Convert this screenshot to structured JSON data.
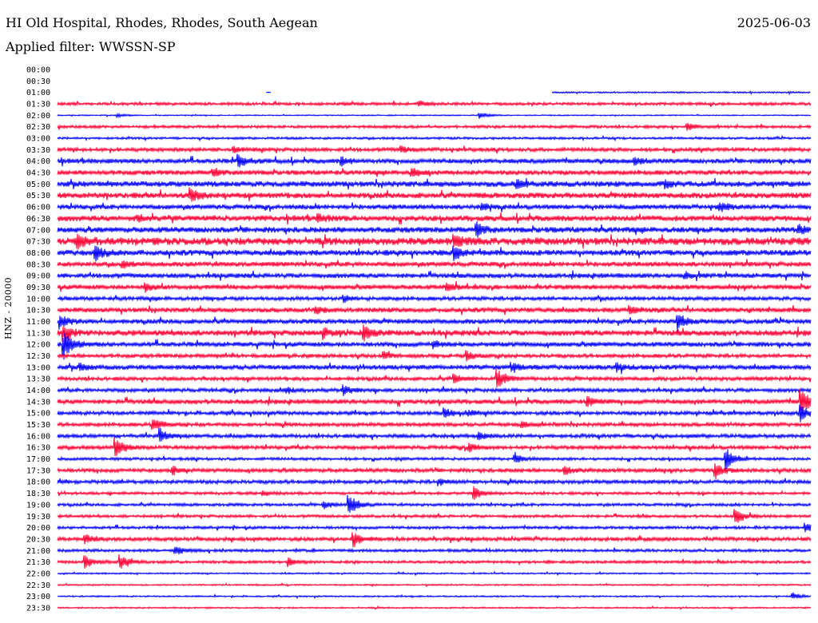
{
  "header": {
    "station": "HI Old Hospital, Rhodes, Rhodes, South Aegean",
    "date": "2025-06-03",
    "filter": "Applied filter: WWSSN-SP"
  },
  "chart_data": {
    "type": "line",
    "title": "HI Old Hospital, Rhodes, Rhodes, South Aegean",
    "ylabel": "HNZ - 20000",
    "xlabel": "",
    "minutes_per_row": 30,
    "colors": {
      "hour": "#0000ff",
      "half_hour": "#ff0033"
    },
    "rows": [
      {
        "t": "00:00",
        "noise": 0,
        "events": [],
        "start": 30
      },
      {
        "t": "00:30",
        "noise": 0,
        "events": [],
        "start": 30
      },
      {
        "t": "01:00",
        "noise": 0.8,
        "events": [
          [
            8.4,
            2
          ]
        ],
        "start": 19.7
      },
      {
        "t": "01:30",
        "noise": 1.5,
        "events": [
          [
            14.4,
            4
          ]
        ]
      },
      {
        "t": "02:00",
        "noise": 0.6,
        "events": [
          [
            16.8,
            5
          ],
          [
            2.4,
            2
          ]
        ]
      },
      {
        "t": "02:30",
        "noise": 1.5,
        "events": [
          [
            25.1,
            4
          ]
        ]
      },
      {
        "t": "03:00",
        "noise": 1.2,
        "events": []
      },
      {
        "t": "03:30",
        "noise": 2,
        "events": [
          [
            13.7,
            4
          ],
          [
            7.0,
            4
          ]
        ]
      },
      {
        "t": "04:00",
        "noise": 2.5,
        "events": [
          [
            7.2,
            8
          ],
          [
            11.3,
            5
          ],
          [
            23.0,
            4
          ]
        ]
      },
      {
        "t": "04:30",
        "noise": 2.5,
        "events": [
          [
            14.1,
            6
          ],
          [
            6.2,
            4
          ]
        ]
      },
      {
        "t": "05:00",
        "noise": 3,
        "events": [
          [
            18.3,
            5
          ],
          [
            24.2,
            5
          ]
        ]
      },
      {
        "t": "05:30",
        "noise": 3,
        "events": [
          [
            5.3,
            8
          ]
        ]
      },
      {
        "t": "06:00",
        "noise": 2.5,
        "events": [
          [
            26.4,
            6
          ],
          [
            16.9,
            4
          ]
        ]
      },
      {
        "t": "06:30",
        "noise": 3,
        "events": [
          [
            10.4,
            5
          ],
          [
            3.2,
            4
          ]
        ]
      },
      {
        "t": "07:00",
        "noise": 3,
        "events": [
          [
            16.7,
            8
          ],
          [
            29.5,
            5
          ]
        ]
      },
      {
        "t": "07:30",
        "noise": 4,
        "events": [
          [
            0.8,
            10
          ],
          [
            15.8,
            8
          ]
        ]
      },
      {
        "t": "08:00",
        "noise": 3,
        "events": [
          [
            1.5,
            10
          ],
          [
            15.8,
            8
          ]
        ]
      },
      {
        "t": "08:30",
        "noise": 2.5,
        "events": [
          [
            2.6,
            4
          ]
        ]
      },
      {
        "t": "09:00",
        "noise": 2.5,
        "events": [
          [
            25.0,
            4
          ]
        ]
      },
      {
        "t": "09:30",
        "noise": 2.5,
        "events": [
          [
            15.5,
            5
          ],
          [
            3.5,
            5
          ]
        ]
      },
      {
        "t": "10:00",
        "noise": 2,
        "events": [
          [
            11.4,
            4
          ]
        ]
      },
      {
        "t": "10:30",
        "noise": 2.5,
        "events": [
          [
            10.3,
            4
          ],
          [
            22.8,
            5
          ]
        ]
      },
      {
        "t": "11:00",
        "noise": 2.5,
        "events": [
          [
            24.7,
            10
          ],
          [
            0.1,
            8
          ]
        ]
      },
      {
        "t": "11:30",
        "noise": 3,
        "events": [
          [
            12.2,
            10
          ],
          [
            10.6,
            6
          ],
          [
            0.25,
            10
          ]
        ]
      },
      {
        "t": "12:00",
        "noise": 2.5,
        "events": [
          [
            0.25,
            18
          ],
          [
            15.0,
            4
          ]
        ]
      },
      {
        "t": "12:30",
        "noise": 2,
        "events": [
          [
            16.3,
            6
          ],
          [
            13.0,
            4
          ]
        ]
      },
      {
        "t": "13:00",
        "noise": 2.5,
        "events": [
          [
            18.1,
            5
          ],
          [
            22.3,
            5
          ],
          [
            0.9,
            4
          ]
        ]
      },
      {
        "t": "13:30",
        "noise": 2,
        "events": [
          [
            17.5,
            14
          ],
          [
            15.8,
            6
          ]
        ]
      },
      {
        "t": "14:00",
        "noise": 2,
        "events": [
          [
            11.4,
            6
          ],
          [
            9.1,
            4
          ]
        ]
      },
      {
        "t": "14:30",
        "noise": 2.5,
        "events": [
          [
            29.6,
            18
          ],
          [
            21.1,
            6
          ]
        ]
      },
      {
        "t": "15:00",
        "noise": 2,
        "events": [
          [
            29.6,
            10
          ],
          [
            15.4,
            6
          ],
          [
            16.4,
            4
          ]
        ]
      },
      {
        "t": "15:30",
        "noise": 2,
        "events": [
          [
            3.8,
            8
          ],
          [
            18.5,
            4
          ]
        ]
      },
      {
        "t": "16:00",
        "noise": 2,
        "events": [
          [
            4.1,
            8
          ],
          [
            16.8,
            4
          ]
        ]
      },
      {
        "t": "16:30",
        "noise": 2,
        "events": [
          [
            2.3,
            14
          ],
          [
            16.4,
            6
          ]
        ]
      },
      {
        "t": "17:00",
        "noise": 1.5,
        "events": [
          [
            26.6,
            14
          ],
          [
            18.2,
            6
          ]
        ]
      },
      {
        "t": "17:30",
        "noise": 2,
        "events": [
          [
            26.2,
            10
          ],
          [
            4.6,
            5
          ],
          [
            20.2,
            5
          ]
        ]
      },
      {
        "t": "18:00",
        "noise": 2,
        "events": [
          [
            15.2,
            4
          ]
        ]
      },
      {
        "t": "18:30",
        "noise": 1.5,
        "events": [
          [
            16.6,
            8
          ],
          [
            8.2,
            4
          ]
        ]
      },
      {
        "t": "19:00",
        "noise": 1.5,
        "events": [
          [
            11.6,
            14
          ],
          [
            10.6,
            5
          ]
        ]
      },
      {
        "t": "19:30",
        "noise": 1.5,
        "events": [
          [
            27.0,
            10
          ]
        ]
      },
      {
        "t": "20:00",
        "noise": 1.5,
        "events": [
          [
            29.8,
            5
          ]
        ]
      },
      {
        "t": "20:30",
        "noise": 2,
        "events": [
          [
            11.8,
            10
          ],
          [
            1.1,
            5
          ]
        ]
      },
      {
        "t": "21:00",
        "noise": 1.5,
        "events": [
          [
            4.7,
            6
          ]
        ]
      },
      {
        "t": "21:30",
        "noise": 1.5,
        "events": [
          [
            2.5,
            10
          ],
          [
            1.1,
            8
          ],
          [
            9.2,
            6
          ]
        ]
      },
      {
        "t": "22:00",
        "noise": 0.8,
        "events": []
      },
      {
        "t": "22:30",
        "noise": 0.8,
        "events": []
      },
      {
        "t": "23:00",
        "noise": 0.8,
        "events": [
          [
            29.3,
            4
          ]
        ]
      },
      {
        "t": "23:30",
        "noise": 0.8,
        "events": []
      }
    ]
  }
}
